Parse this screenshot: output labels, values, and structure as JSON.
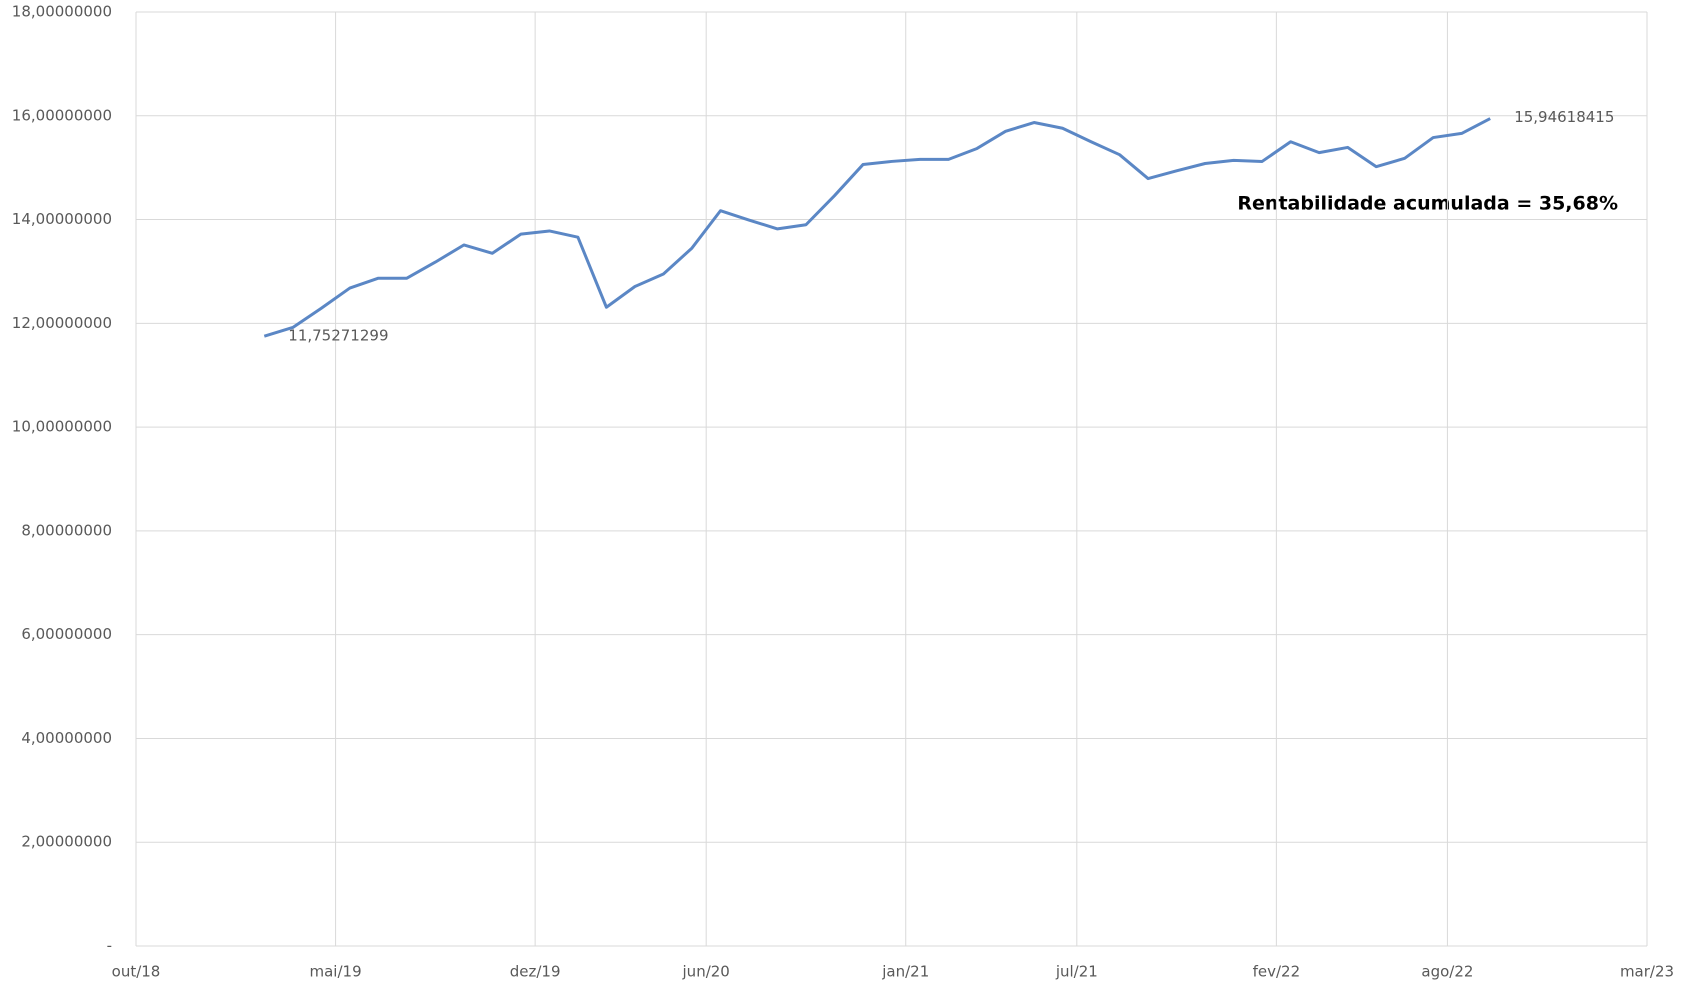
{
  "chart_data": {
    "type": "line",
    "x": [
      "2019-02",
      "2019-03",
      "2019-04",
      "2019-05",
      "2019-06",
      "2019-07",
      "2019-08",
      "2019-09",
      "2019-10",
      "2019-11",
      "2019-12",
      "2020-01",
      "2020-02",
      "2020-03",
      "2020-04",
      "2020-05",
      "2020-06",
      "2020-07",
      "2020-08",
      "2020-09",
      "2020-10",
      "2020-11",
      "2020-12",
      "2021-01",
      "2021-02",
      "2021-03",
      "2021-04",
      "2021-05",
      "2021-06",
      "2021-07",
      "2021-08",
      "2021-09",
      "2021-10",
      "2021-11",
      "2021-12",
      "2022-01",
      "2022-02",
      "2022-03",
      "2022-04",
      "2022-05",
      "2022-06",
      "2022-07",
      "2022-08",
      "2022-09"
    ],
    "series": [
      {
        "color": "#5b87c5",
        "values": [
          11.75271299,
          11.92,
          12.29,
          12.68,
          12.87,
          12.87,
          13.18,
          13.51,
          13.35,
          13.72,
          13.78,
          13.66,
          12.31,
          12.71,
          12.95,
          13.45,
          14.17,
          13.99,
          13.82,
          13.9,
          14.46,
          15.06,
          15.12,
          15.16,
          15.16,
          15.37,
          15.7,
          15.87,
          15.76,
          15.5,
          15.25,
          14.79,
          14.94,
          15.08,
          15.14,
          15.12,
          15.5,
          15.29,
          15.39,
          15.02,
          15.18,
          15.58,
          15.66,
          15.94618415
        ],
        "value_labels": [
          "11,75271299",
          null,
          null,
          null,
          null,
          null,
          null,
          null,
          null,
          null,
          null,
          null,
          null,
          null,
          null,
          null,
          null,
          null,
          null,
          null,
          null,
          null,
          null,
          null,
          null,
          null,
          null,
          null,
          null,
          null,
          null,
          null,
          null,
          null,
          null,
          null,
          null,
          null,
          null,
          null,
          null,
          null,
          null,
          "15,94618415"
        ]
      }
    ],
    "annotation": "Rentabilidade acumulada = 35,68%",
    "xlim": [
      "2018-10",
      "2023-03"
    ],
    "xticks": [
      {
        "value": "2018-10",
        "label": "out/18"
      },
      {
        "value": "2019-05",
        "label": "mai/19"
      },
      {
        "value": "2019-12",
        "label": "dez/19"
      },
      {
        "value": "2020-06",
        "label": "jun/20"
      },
      {
        "value": "2021-01",
        "label": "jan/21"
      },
      {
        "value": "2021-07",
        "label": "jul/21"
      },
      {
        "value": "2022-02",
        "label": "fev/22"
      },
      {
        "value": "2022-08",
        "label": "ago/22"
      },
      {
        "value": "2023-03",
        "label": "mar/23"
      }
    ],
    "ylim": [
      0,
      18
    ],
    "yticks": [
      {
        "value": 0,
        "label": "-"
      },
      {
        "value": 2,
        "label": "2,00000000"
      },
      {
        "value": 4,
        "label": "4,00000000"
      },
      {
        "value": 6,
        "label": "6,00000000"
      },
      {
        "value": 8,
        "label": "8,00000000"
      },
      {
        "value": 10,
        "label": "10,00000000"
      },
      {
        "value": 12,
        "label": "12,00000000"
      },
      {
        "value": 14,
        "label": "14,00000000"
      },
      {
        "value": 16,
        "label": "16,00000000"
      },
      {
        "value": 18,
        "label": "18,00000000"
      }
    ],
    "grid": true
  }
}
